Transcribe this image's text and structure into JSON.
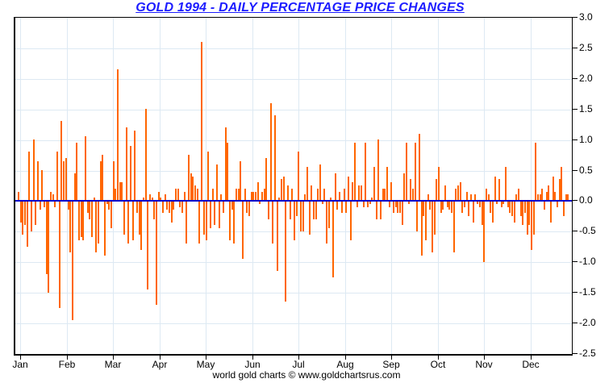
{
  "header": {
    "title": "GOLD 1994 - DAILY PERCENTAGE PRICE CHANGES"
  },
  "footer": {
    "credit": "world gold charts © www.goldchartsrus.com"
  },
  "chart_data": {
    "type": "bar",
    "title": "GOLD 1994 - DAILY PERCENTAGE PRICE CHANGES",
    "xlabel": "",
    "ylabel": "",
    "ylim": [
      -2.5,
      3.0
    ],
    "y_tick_step": 0.5,
    "y_tick_labels": [
      "3.0",
      "2.5",
      "2.0",
      "1.5",
      "1.0",
      "0.5",
      "0.0",
      "-0.5",
      "-1.0",
      "-1.5",
      "-2.0",
      "-2.5"
    ],
    "y_axis_side": "right",
    "grid": true,
    "legend": "none",
    "colors": {
      "bar": "#ff6600",
      "zero_line": "#0000cc",
      "gridline": "#dde9f3",
      "title": "#1c1cff",
      "axis_text": "#000000",
      "border": "#000000",
      "background": "#ffffff"
    },
    "categories": [
      "Jan",
      "Feb",
      "Mar",
      "Apr",
      "May",
      "Jun",
      "Jul",
      "Aug",
      "Sep",
      "Oct",
      "Nov",
      "Dec"
    ],
    "series": [
      {
        "name": "Jan",
        "values": [
          0.15,
          -0.35,
          -0.55,
          -0.4,
          -0.75,
          0.8,
          -0.5,
          1.0,
          -0.4,
          0.65,
          -0.15,
          0.5,
          -0.1,
          -1.2,
          -1.5,
          0.15,
          0.1,
          -0.1,
          0.8,
          -1.75,
          1.3
        ]
      },
      {
        "name": "Feb",
        "values": [
          0.65,
          0.7,
          -0.15,
          -0.85,
          -1.95,
          0.45,
          0.95,
          -0.65,
          -0.6,
          -0.65,
          1.05,
          -0.2,
          -0.3,
          -0.6,
          0.05,
          -0.85,
          -0.7,
          0.65,
          0.75,
          -0.9,
          -0.05,
          -0.15
        ]
      },
      {
        "name": "Mar",
        "values": [
          -0.45,
          0.65,
          0.2,
          2.15,
          0.3,
          0.3,
          -0.55,
          1.2,
          -0.7,
          0.9,
          -0.65,
          1.15,
          -0.2,
          -0.55,
          -0.8,
          0.05,
          1.5,
          -1.45,
          0.1,
          0.05,
          -0.3
        ]
      },
      {
        "name": "Apr",
        "values": [
          -1.7,
          0.15,
          0.05,
          -0.2,
          0.1,
          -0.15,
          -0.2,
          -0.35,
          -0.15,
          0.2,
          0.2,
          -0.1,
          -0.2,
          0.15,
          -0.7,
          0.75,
          0.45,
          0.4,
          0.25,
          0.2
        ]
      },
      {
        "name": "May",
        "values": [
          -0.7,
          2.6,
          -0.55,
          -0.65,
          0.8,
          -0.45,
          0.2,
          -0.4,
          0.6,
          -0.45,
          0.1,
          -0.2,
          1.2,
          0.95,
          -0.65,
          -0.15,
          -0.7,
          0.2,
          0.2,
          0.65,
          -0.95
        ]
      },
      {
        "name": "Jun",
        "values": [
          0.2,
          -0.2,
          -0.25,
          0.15,
          0.15,
          0.15,
          0.3,
          -0.05,
          0.15,
          0.2,
          0.7,
          -0.3,
          1.6,
          -0.7,
          1.4,
          -1.15,
          0.05,
          0.35,
          0.4,
          -1.65,
          0.25,
          -0.3
        ]
      },
      {
        "name": "Jul",
        "values": [
          0.2,
          -0.65,
          -0.25,
          0.8,
          -0.5,
          -0.5,
          0.1,
          0.55,
          -0.55,
          0.25,
          -0.3,
          -0.3,
          0.2,
          0.6,
          -0.05,
          0.2,
          -0.7,
          -0.45,
          0.05,
          -1.25
        ]
      },
      {
        "name": "Aug",
        "values": [
          0.45,
          -0.15,
          0.15,
          -0.2,
          0.2,
          -0.2,
          0.4,
          -0.65,
          0.3,
          0.95,
          -0.1,
          0.25,
          0.25,
          -0.1,
          0.95,
          -0.1,
          -0.05,
          0.05,
          0.55,
          -0.3,
          1.0,
          -0.3
        ]
      },
      {
        "name": "Sep",
        "values": [
          0.2,
          0.2,
          0.55,
          -0.1,
          0.3,
          -0.2,
          -0.1,
          -0.2,
          -0.2,
          -0.4,
          0.45,
          0.95,
          -0.05,
          0.35,
          0.2,
          0.95,
          -0.5,
          1.1,
          -0.9,
          -0.25,
          -0.65
        ]
      },
      {
        "name": "Oct",
        "values": [
          0.1,
          -0.15,
          -0.85,
          -0.55,
          0.35,
          0.55,
          -0.2,
          -0.15,
          0.25,
          -0.1,
          -0.15,
          -0.2,
          -0.85,
          0.2,
          0.25,
          0.3,
          -0.2,
          -0.1,
          0.15,
          -0.25,
          0.1
        ]
      },
      {
        "name": "Nov",
        "values": [
          -0.35,
          0.1,
          -0.05,
          -0.1,
          -0.4,
          -1.0,
          0.2,
          0.1,
          -0.2,
          -0.35,
          0.4,
          -0.05,
          0.35,
          -0.1,
          -0.05,
          0.55,
          -0.1,
          -0.2,
          -0.25,
          -0.35,
          0.1,
          0.2
        ]
      },
      {
        "name": "Dec",
        "values": [
          -0.25,
          -0.4,
          -0.2,
          -0.55,
          -0.4,
          -0.8,
          -0.55,
          0.95,
          0.1,
          0.1,
          0.2,
          -0.15,
          0.15,
          0.25,
          -0.35,
          0.4,
          0.15,
          -0.1,
          0.35,
          0.55,
          -0.25,
          0.1,
          0.1
        ]
      }
    ]
  }
}
